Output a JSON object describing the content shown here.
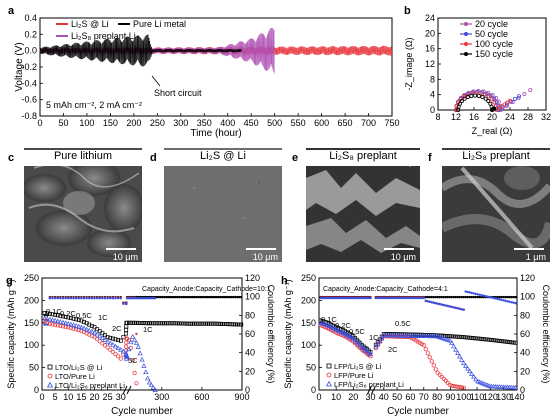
{
  "panels": {
    "a": {
      "label": "a",
      "ylabel": "Voltage (V)",
      "xlabel": "Time (hour)",
      "condition": "5 mAh cm⁻², 2 mA cm⁻²",
      "annotation": "Short circuit",
      "legend": [
        "Li₂S @ Li",
        "Pure Li metal",
        "Li₂S₈ preplant Li"
      ]
    },
    "b": {
      "label": "b",
      "ylabel": "-Z_image (Ω)",
      "xlabel": "Z_real (Ω)",
      "legend": [
        "20 cycle",
        "50 cycle",
        "100 cycle",
        "150 cycle"
      ]
    },
    "c": {
      "label": "c",
      "title": "Pure lithium",
      "scale": "10 μm"
    },
    "d": {
      "label": "d",
      "title": "Li₂S @ Li",
      "scale": "10 μm"
    },
    "e": {
      "label": "e",
      "title": "Li₂S₈ preplant",
      "scale": "10 μm"
    },
    "f": {
      "label": "f",
      "title": "Li₂S₈ preplant",
      "scale": "1 μm"
    },
    "g": {
      "label": "g",
      "ylabel": "Specific capacity (mAh g⁻¹)",
      "y2label": "Coulombic efficiency (%)",
      "xlabel": "Cycle number",
      "ratio": "Capacity_Anode:Capacity_Cathode=10:1",
      "rates": [
        "0.1C",
        "0.2C",
        "0.5C",
        "1C",
        "2C",
        "5C",
        "1C"
      ],
      "legend": [
        "LTO/Li₂S @ Li",
        "LTO/Pure Li",
        "LTO/Li₂S₈ preplant Li"
      ]
    },
    "h": {
      "label": "h",
      "ylabel": "Specific capacity (mAh g⁻¹)",
      "y2label": "Coulombic efficiency (%)",
      "xlabel": "Cycle number",
      "ratio": "Capacity_Anode:Capacity_Cathode=4:1",
      "rates": [
        "0.1C",
        "0.2C",
        "0.5C",
        "1C",
        "2C",
        "0.5C"
      ],
      "legend": [
        "LFP/Li₂S @ Li",
        "LFP/Pure Li",
        "LFP/Li₂S₈ preplant Li"
      ]
    }
  },
  "chart_data": [
    {
      "id": "a",
      "type": "line",
      "xlabel": "Time (hour)",
      "ylabel": "Voltage (V)",
      "xlim": [
        0,
        750
      ],
      "ylim": [
        -0.8,
        0.4
      ],
      "xticks": [
        0,
        50,
        100,
        150,
        200,
        250,
        300,
        350,
        400,
        450,
        500,
        550,
        600,
        650,
        700,
        750
      ],
      "yticks": [
        -0.8,
        -0.6,
        -0.4,
        -0.2,
        0.0,
        0.2,
        0.4
      ],
      "series": [
        {
          "name": "Li₂S @ Li",
          "color": "#e8353b",
          "x_end": 750,
          "amplitude": [
            [
              0,
              0.03
            ],
            [
              750,
              0.06
            ]
          ]
        },
        {
          "name": "Pure Li metal",
          "color": "#000000",
          "x_end": 430,
          "amplitude": [
            [
              0,
              0.04
            ],
            [
              150,
              0.15
            ],
            [
              230,
              0.2
            ],
            [
              240,
              0.02
            ],
            [
              430,
              0.02
            ]
          ]
        },
        {
          "name": "Li₂S₈ preplant Li",
          "color": "#b04fb4",
          "x_end": 500,
          "amplitude": [
            [
              0,
              0.03
            ],
            [
              380,
              0.04
            ],
            [
              450,
              0.15
            ],
            [
              500,
              0.3
            ]
          ]
        }
      ]
    },
    {
      "id": "b",
      "type": "scatter",
      "xlabel": "Z_real (Ω)",
      "ylabel": "-Z_image (Ω)",
      "xlim": [
        8,
        32
      ],
      "ylim": [
        0,
        24
      ],
      "xticks": [
        8,
        12,
        16,
        20,
        24,
        28,
        32
      ],
      "yticks": [
        0,
        4,
        8,
        12,
        16,
        20,
        24
      ],
      "series": [
        {
          "name": "20 cycle",
          "color": "#b04fb4",
          "x_start": 12,
          "x_end": 22,
          "tail_to": 28.5
        },
        {
          "name": "50 cycle",
          "color": "#3a4fe0",
          "x_start": 12,
          "x_end": 21.5,
          "tail_to": 26
        },
        {
          "name": "100 cycle",
          "color": "#e8353b",
          "x_start": 12,
          "x_end": 21,
          "tail_to": 24
        },
        {
          "name": "150 cycle",
          "color": "#000000",
          "x_start": 12.5,
          "x_end": 20,
          "tail_to": 20.5
        }
      ]
    },
    {
      "id": "g",
      "type": "scatter",
      "xlabel": "Cycle number",
      "ylabel": "Specific capacity (mAh g⁻¹)",
      "y2label": "Coulombic efficiency (%)",
      "ylim": [
        0,
        250
      ],
      "y2lim": [
        0,
        120
      ],
      "xticks": [
        0,
        5,
        10,
        15,
        20,
        25,
        30,
        300,
        600,
        900
      ],
      "yticks": [
        0,
        50,
        100,
        150,
        200,
        250
      ],
      "y2ticks": [
        0,
        20,
        40,
        60,
        80,
        100,
        120
      ],
      "series": [
        {
          "name": "LTO/Li₂S @ Li",
          "color": "#000000",
          "x": [
            1,
            5,
            10,
            15,
            20,
            25,
            30,
            35,
            100,
            200,
            300,
            400,
            500,
            600,
            700,
            800,
            900
          ],
          "values": [
            172,
            168,
            162,
            155,
            140,
            118,
            110,
            150,
            150,
            149,
            149,
            149,
            148,
            148,
            148,
            147,
            146
          ]
        },
        {
          "name": "LTO/Pure Li",
          "color": "#e8353b",
          "x": [
            1,
            5,
            10,
            15,
            20,
            25,
            30,
            35,
            60,
            100,
            120
          ],
          "values": [
            150,
            145,
            140,
            132,
            118,
            95,
            70,
            115,
            110,
            30,
            0
          ]
        },
        {
          "name": "LTO/Li₂S₈ preplant Li",
          "color": "#3a4fe0",
          "x": [
            1,
            5,
            10,
            15,
            20,
            25,
            30,
            35,
            80,
            120,
            200,
            250
          ],
          "values": [
            160,
            155,
            148,
            140,
            128,
            108,
            90,
            70,
            120,
            100,
            20,
            0
          ]
        }
      ]
    },
    {
      "id": "h",
      "type": "scatter",
      "xlabel": "Cycle number",
      "ylabel": "Specific capacity (mAh g⁻¹)",
      "y2label": "Coulombic efficiency (%)",
      "ylim": [
        0,
        250
      ],
      "y2lim": [
        0,
        120
      ],
      "xticks": [
        0,
        10,
        20,
        30,
        40,
        50,
        60,
        70,
        80,
        90,
        100,
        110,
        120,
        130,
        140
      ],
      "yticks": [
        0,
        50,
        100,
        150,
        200,
        250
      ],
      "y2ticks": [
        0,
        20,
        40,
        60,
        80,
        100,
        120
      ],
      "series": [
        {
          "name": "LFP/Li₂S @ Li",
          "color": "#000000",
          "x": [
            1,
            5,
            10,
            15,
            20,
            25,
            30,
            40,
            60,
            80,
            100,
            120,
            140
          ],
          "values": [
            155,
            150,
            140,
            132,
            120,
            100,
            85,
            125,
            124,
            122,
            118,
            112,
            105
          ]
        },
        {
          "name": "LFP/Pure Li",
          "color": "#e8353b",
          "x": [
            1,
            5,
            10,
            15,
            20,
            25,
            30,
            40,
            60,
            70,
            80,
            90,
            100
          ],
          "values": [
            145,
            138,
            128,
            120,
            108,
            90,
            75,
            120,
            118,
            100,
            40,
            10,
            5
          ]
        },
        {
          "name": "LFP/Li₂S₈ preplant Li",
          "color": "#3a4fe0",
          "x": [
            1,
            5,
            10,
            15,
            20,
            25,
            30,
            40,
            80,
            90,
            100,
            110,
            120,
            140
          ],
          "values": [
            150,
            145,
            135,
            126,
            115,
            96,
            80,
            122,
            120,
            110,
            60,
            20,
            8,
            5
          ]
        }
      ]
    }
  ]
}
